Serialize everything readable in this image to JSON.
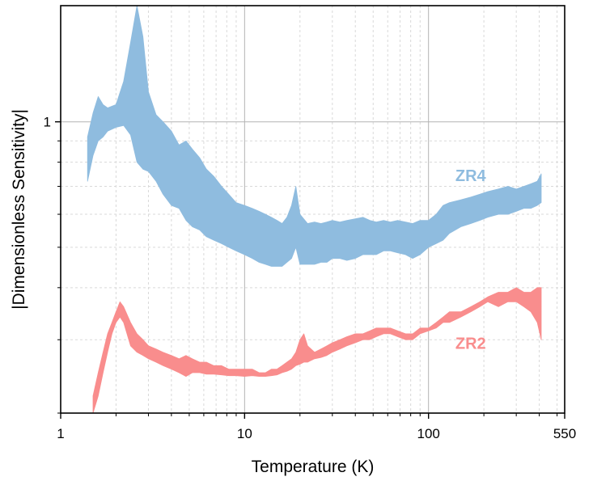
{
  "chart_data": {
    "type": "area",
    "title": "",
    "xlabel": "Temperature (K)",
    "ylabel": "|Dimensionless Sensitivity|",
    "x_scale": "log",
    "y_scale": "log",
    "xlim": [
      1,
      550
    ],
    "ylim": [
      0.2,
      1.9
    ],
    "x_ticks": [
      {
        "value": 1,
        "label": "1"
      },
      {
        "value": 10,
        "label": "10"
      },
      {
        "value": 100,
        "label": "100"
      },
      {
        "value": 550,
        "label": "550"
      }
    ],
    "y_ticks": [
      {
        "value": 1,
        "label": "1"
      }
    ],
    "grid": true,
    "legend": "none",
    "series": [
      {
        "name": "ZR4",
        "color": "#8fbcdf",
        "x": [
          1.4,
          1.5,
          1.6,
          1.7,
          1.8,
          2.0,
          2.2,
          2.4,
          2.6,
          2.8,
          3.0,
          3.3,
          3.6,
          4.0,
          4.4,
          4.8,
          5.2,
          5.7,
          6.2,
          6.8,
          7.5,
          8.2,
          9.0,
          10,
          11,
          12,
          13,
          14,
          15,
          16,
          17,
          18,
          19,
          20,
          22,
          24,
          26,
          28,
          30,
          33,
          36,
          40,
          44,
          48,
          52,
          57,
          62,
          68,
          75,
          82,
          90,
          100,
          110,
          120,
          130,
          150,
          170,
          190,
          210,
          240,
          270,
          300,
          330,
          360,
          390,
          410
        ],
        "upper": [
          0.92,
          1.05,
          1.15,
          1.1,
          1.08,
          1.1,
          1.25,
          1.55,
          1.9,
          1.6,
          1.18,
          1.04,
          1.0,
          0.95,
          0.88,
          0.9,
          0.86,
          0.82,
          0.77,
          0.74,
          0.7,
          0.67,
          0.64,
          0.63,
          0.62,
          0.61,
          0.6,
          0.59,
          0.58,
          0.57,
          0.59,
          0.63,
          0.7,
          0.6,
          0.57,
          0.575,
          0.57,
          0.575,
          0.58,
          0.575,
          0.58,
          0.585,
          0.59,
          0.58,
          0.575,
          0.58,
          0.575,
          0.58,
          0.575,
          0.57,
          0.58,
          0.58,
          0.6,
          0.63,
          0.64,
          0.65,
          0.66,
          0.67,
          0.68,
          0.69,
          0.7,
          0.69,
          0.7,
          0.71,
          0.72,
          0.75
        ],
        "lower": [
          0.72,
          0.83,
          0.9,
          0.92,
          0.95,
          0.97,
          0.98,
          0.93,
          0.8,
          0.77,
          0.76,
          0.72,
          0.67,
          0.63,
          0.62,
          0.58,
          0.56,
          0.55,
          0.53,
          0.52,
          0.51,
          0.5,
          0.49,
          0.48,
          0.47,
          0.46,
          0.455,
          0.45,
          0.45,
          0.45,
          0.46,
          0.47,
          0.5,
          0.455,
          0.455,
          0.455,
          0.46,
          0.46,
          0.47,
          0.47,
          0.465,
          0.47,
          0.48,
          0.48,
          0.48,
          0.49,
          0.49,
          0.485,
          0.48,
          0.47,
          0.48,
          0.5,
          0.51,
          0.52,
          0.54,
          0.56,
          0.57,
          0.58,
          0.59,
          0.6,
          0.6,
          0.61,
          0.62,
          0.62,
          0.63,
          0.64
        ]
      },
      {
        "name": "ZR2",
        "color": "#f98d8d",
        "x": [
          1.5,
          1.6,
          1.7,
          1.8,
          1.9,
          2.0,
          2.1,
          2.2,
          2.4,
          2.6,
          2.8,
          3.0,
          3.3,
          3.6,
          4.0,
          4.4,
          4.8,
          5.2,
          5.7,
          6.2,
          6.8,
          7.5,
          8.2,
          9.0,
          10,
          11,
          12,
          13,
          14,
          15,
          16,
          17,
          18,
          19,
          20,
          21,
          22,
          24,
          26,
          28,
          30,
          33,
          36,
          40,
          44,
          48,
          52,
          57,
          62,
          68,
          75,
          82,
          90,
          100,
          110,
          120,
          130,
          150,
          170,
          190,
          210,
          240,
          270,
          300,
          330,
          360,
          390,
          410
        ],
        "upper": [
          0.22,
          0.25,
          0.28,
          0.31,
          0.33,
          0.35,
          0.37,
          0.36,
          0.33,
          0.31,
          0.3,
          0.29,
          0.285,
          0.28,
          0.275,
          0.27,
          0.275,
          0.27,
          0.265,
          0.265,
          0.26,
          0.26,
          0.255,
          0.255,
          0.255,
          0.255,
          0.25,
          0.25,
          0.255,
          0.255,
          0.26,
          0.265,
          0.27,
          0.28,
          0.3,
          0.31,
          0.29,
          0.28,
          0.285,
          0.29,
          0.295,
          0.3,
          0.305,
          0.31,
          0.31,
          0.315,
          0.32,
          0.32,
          0.32,
          0.315,
          0.31,
          0.31,
          0.32,
          0.32,
          0.33,
          0.34,
          0.35,
          0.35,
          0.36,
          0.37,
          0.38,
          0.39,
          0.39,
          0.4,
          0.39,
          0.39,
          0.4,
          0.4
        ],
        "lower": [
          0.2,
          0.22,
          0.25,
          0.28,
          0.31,
          0.33,
          0.34,
          0.33,
          0.29,
          0.28,
          0.275,
          0.27,
          0.265,
          0.26,
          0.255,
          0.25,
          0.245,
          0.25,
          0.25,
          0.248,
          0.248,
          0.247,
          0.246,
          0.246,
          0.245,
          0.246,
          0.245,
          0.245,
          0.246,
          0.247,
          0.25,
          0.252,
          0.255,
          0.26,
          0.262,
          0.265,
          0.265,
          0.27,
          0.272,
          0.275,
          0.28,
          0.285,
          0.29,
          0.295,
          0.3,
          0.3,
          0.305,
          0.31,
          0.31,
          0.305,
          0.3,
          0.3,
          0.31,
          0.315,
          0.32,
          0.33,
          0.33,
          0.34,
          0.35,
          0.36,
          0.37,
          0.36,
          0.37,
          0.37,
          0.36,
          0.35,
          0.33,
          0.3
        ]
      }
    ]
  }
}
